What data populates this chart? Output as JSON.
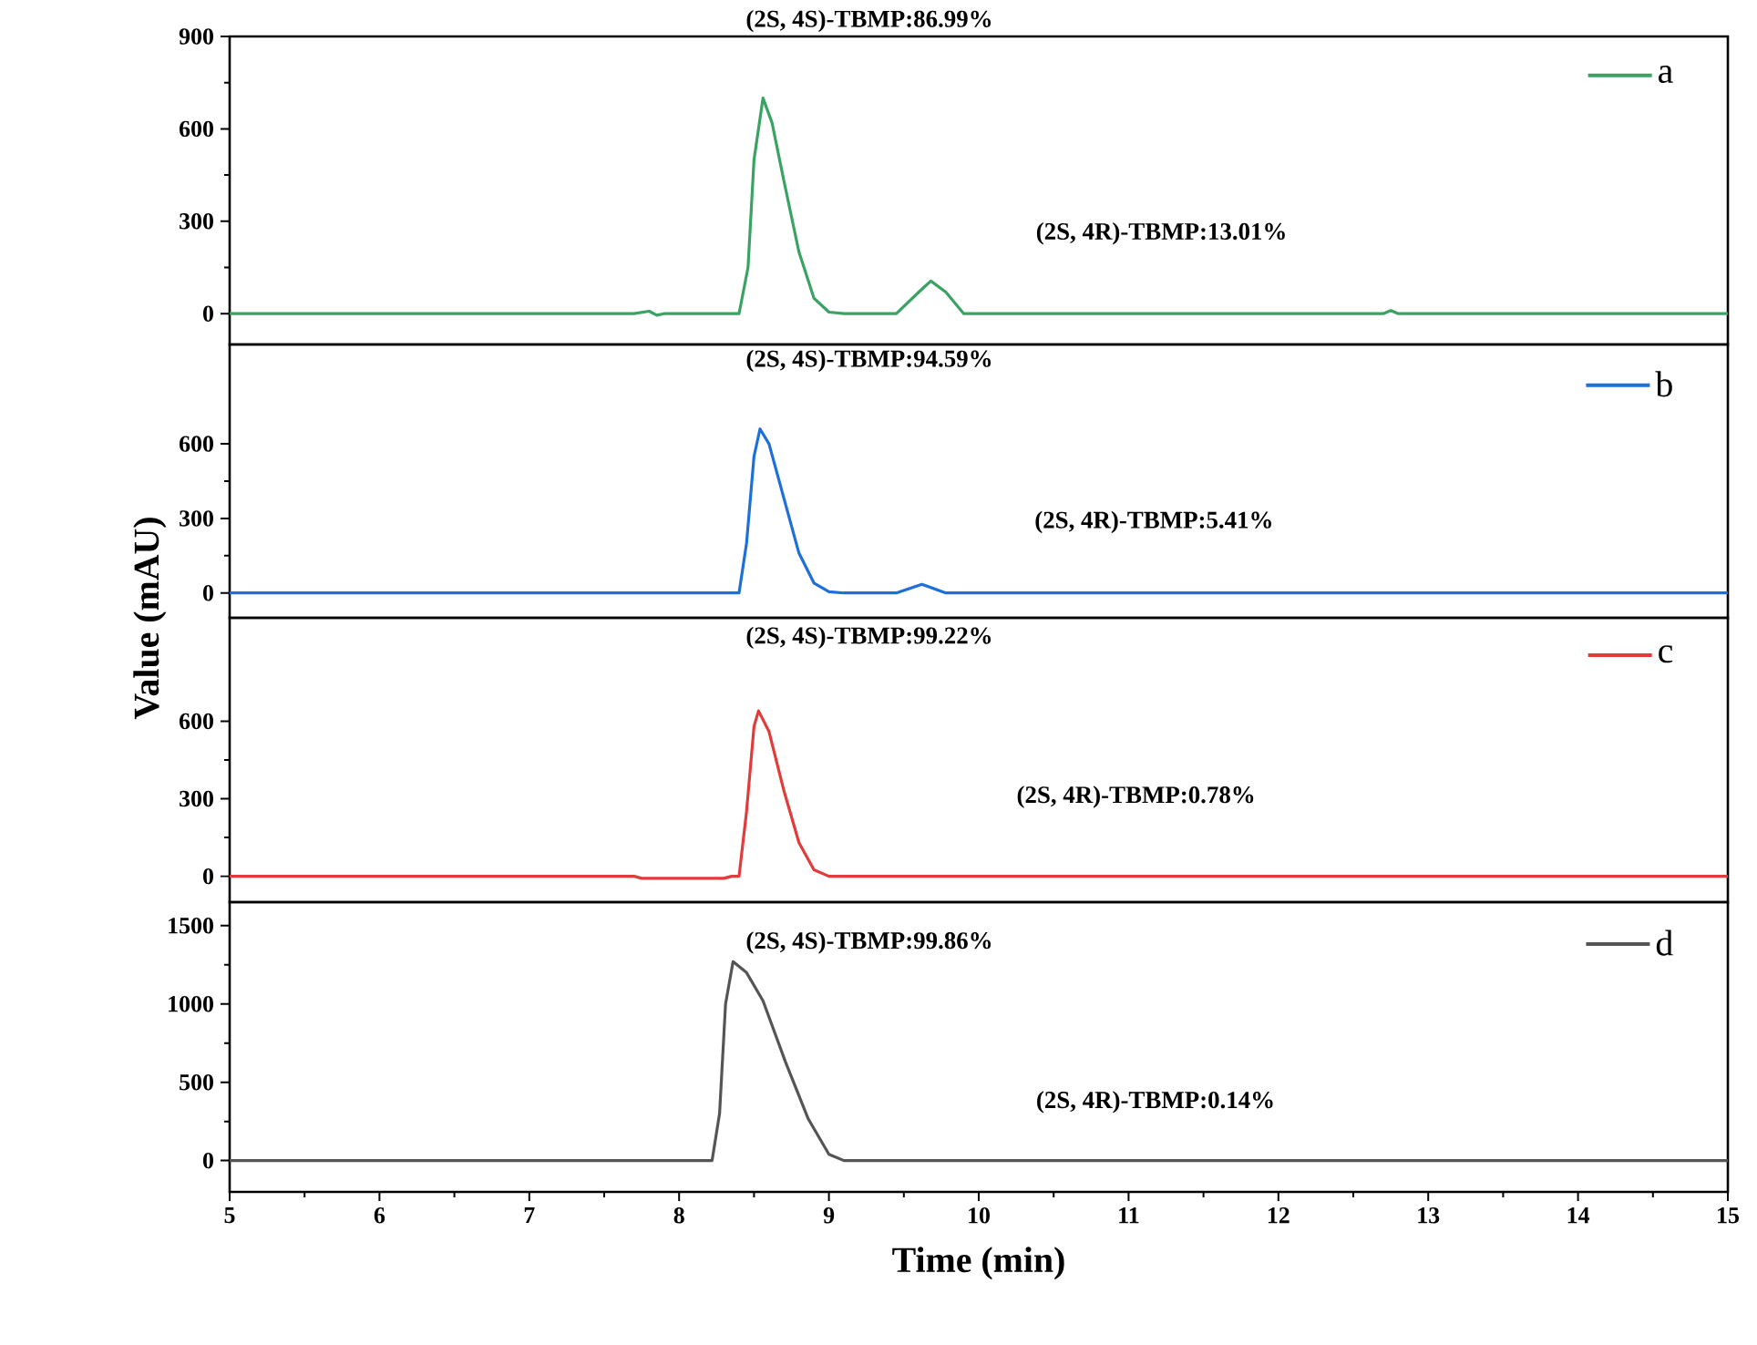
{
  "chart_data": [
    {
      "type": "line",
      "xlim": [
        5,
        15
      ],
      "ylim": [
        -100,
        900
      ],
      "yticks": [
        0,
        300,
        600,
        900
      ],
      "tick_labels": "y",
      "legend": "top right",
      "x": [
        5,
        7.7,
        7.8,
        7.85,
        7.9,
        8.4,
        8.46,
        8.5,
        8.56,
        8.62,
        8.7,
        8.8,
        8.9,
        9.0,
        9.1,
        9.45,
        9.6,
        9.68,
        9.78,
        9.9,
        12.7,
        12.75,
        12.8,
        15
      ],
      "series": [
        {
          "name": "a",
          "color": "#3aa364",
          "values": [
            0,
            0,
            8,
            -5,
            0,
            0,
            150,
            500,
            700,
            620,
            430,
            200,
            50,
            5,
            0,
            0,
            70,
            106,
            70,
            0,
            0,
            10,
            0,
            0
          ]
        }
      ],
      "annotations": [
        "(2S, 4S)-TBMP:86.99%",
        "(2S, 4R)-TBMP:13.01%"
      ]
    },
    {
      "type": "line",
      "xlim": [
        5,
        15
      ],
      "ylim": [
        -100,
        1000
      ],
      "yticks": [
        0,
        300,
        600
      ],
      "tick_labels": "y",
      "legend": "top right",
      "ylabel": "Value (mAU)",
      "x": [
        5,
        8.4,
        8.45,
        8.5,
        8.54,
        8.6,
        8.7,
        8.8,
        8.9,
        9.0,
        9.1,
        9.45,
        9.62,
        9.78,
        15
      ],
      "series": [
        {
          "name": "b",
          "color": "#1e6fd9",
          "values": [
            0,
            0,
            200,
            550,
            660,
            600,
            380,
            160,
            40,
            5,
            0,
            0,
            35,
            0,
            0
          ]
        }
      ],
      "annotations": [
        "(2S, 4S)-TBMP:94.59%",
        "(2S, 4R)-TBMP:5.41%"
      ]
    },
    {
      "type": "line",
      "xlim": [
        5,
        15
      ],
      "ylim": [
        -100,
        1000
      ],
      "yticks": [
        0,
        300,
        600
      ],
      "tick_labels": "y",
      "legend": "top right",
      "x": [
        5,
        7.7,
        7.75,
        8.3,
        8.35,
        8.4,
        8.45,
        8.5,
        8.53,
        8.6,
        8.7,
        8.8,
        8.9,
        9.0,
        15
      ],
      "series": [
        {
          "name": "c",
          "color": "#e03c3c",
          "values": [
            0,
            0,
            -8,
            -8,
            0,
            0,
            250,
            580,
            640,
            560,
            330,
            130,
            25,
            0,
            0
          ]
        }
      ],
      "annotations": [
        "(2S, 4S)-TBMP:99.22%",
        "(2S, 4R)-TBMP:0.78%"
      ]
    },
    {
      "type": "line",
      "xlim": [
        5,
        15
      ],
      "ylim": [
        -200,
        1650
      ],
      "yticks": [
        0,
        500,
        1000,
        1500
      ],
      "xticks": [
        5,
        6,
        7,
        8,
        9,
        10,
        11,
        12,
        13,
        14,
        15
      ],
      "legend": "top right",
      "xlabel": "Time (min)",
      "x": [
        5,
        8.22,
        8.27,
        8.31,
        8.36,
        8.45,
        8.56,
        8.71,
        8.86,
        9.0,
        9.1,
        15
      ],
      "series": [
        {
          "name": "d",
          "color": "#555555",
          "values": [
            0,
            0,
            300,
            1000,
            1270,
            1200,
            1020,
            630,
            270,
            40,
            0,
            0
          ]
        }
      ],
      "annotations": [
        "(2S, 4S)-TBMP:99.86%",
        "(2S, 4R)-TBMP:0.14%"
      ]
    }
  ]
}
